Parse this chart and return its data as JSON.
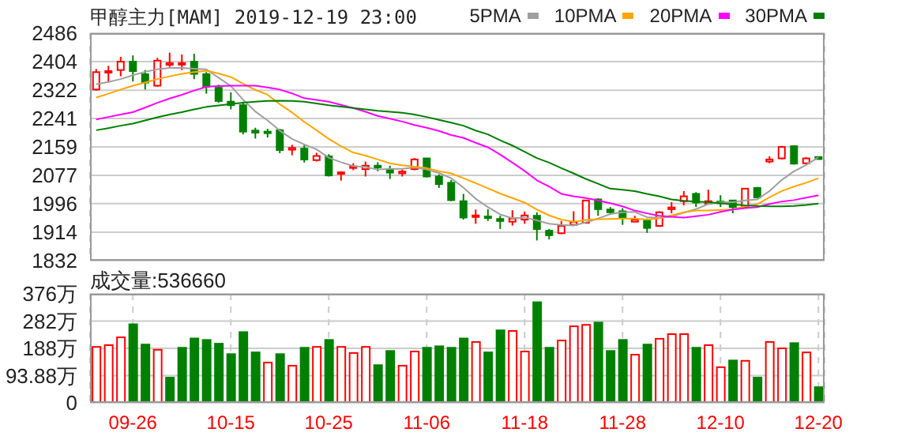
{
  "chart_data": [
    {
      "type": "candlestick",
      "title": "甲醇主力[MAM] 2019-12-19 23:00",
      "categories": [
        null,
        null,
        null,
        null,
        null,
        null,
        null,
        null,
        null,
        null,
        null,
        null,
        null,
        null,
        null,
        null,
        null,
        null,
        null,
        null,
        null,
        null,
        null,
        null,
        null,
        null,
        null,
        null,
        null,
        null,
        null,
        null,
        null,
        null,
        null,
        null,
        null,
        null,
        null,
        null,
        null,
        null,
        null,
        null,
        null,
        null,
        null,
        null,
        null,
        null,
        null,
        null,
        null,
        null,
        null,
        null,
        null,
        null,
        null,
        null
      ],
      "ohlc": [
        [
          2324,
          2383,
          2321,
          2374
        ],
        [
          2374,
          2392,
          2344,
          2377
        ],
        [
          2380,
          2418,
          2362,
          2404
        ],
        [
          2404,
          2422,
          2347,
          2377
        ],
        [
          2368,
          2380,
          2324,
          2344
        ],
        [
          2335,
          2415,
          2332,
          2407
        ],
        [
          2395,
          2430,
          2389,
          2400
        ],
        [
          2397,
          2425,
          2380,
          2400
        ],
        [
          2404,
          2427,
          2354,
          2369
        ],
        [
          2368,
          2374,
          2312,
          2332
        ],
        [
          2329,
          2338,
          2286,
          2291
        ],
        [
          2289,
          2316,
          2267,
          2279
        ],
        [
          2279,
          2289,
          2195,
          2203
        ],
        [
          2206,
          2214,
          2183,
          2200
        ],
        [
          2203,
          2211,
          2186,
          2200
        ],
        [
          2207,
          2211,
          2141,
          2150
        ],
        [
          2151,
          2165,
          2135,
          2156
        ],
        [
          2154,
          2165,
          2114,
          2123
        ],
        [
          2121,
          2142,
          2117,
          2133
        ],
        [
          2132,
          2138,
          2074,
          2077
        ],
        [
          2082,
          2089,
          2062,
          2086
        ],
        [
          2099,
          2112,
          2092,
          2103
        ],
        [
          2095,
          2117,
          2074,
          2105
        ],
        [
          2105,
          2115,
          2089,
          2100
        ],
        [
          2095,
          2105,
          2067,
          2085
        ],
        [
          2083,
          2094,
          2074,
          2088
        ],
        [
          2095,
          2127,
          2092,
          2123
        ],
        [
          2126,
          2127,
          2071,
          2074
        ],
        [
          2074,
          2080,
          2041,
          2052
        ],
        [
          2056,
          2064,
          2003,
          2006
        ],
        [
          2003,
          2024,
          1950,
          1956
        ],
        [
          1958,
          1979,
          1938,
          1962
        ],
        [
          1959,
          1980,
          1946,
          1955
        ],
        [
          1952,
          1961,
          1923,
          1946
        ],
        [
          1944,
          1977,
          1933,
          1953
        ],
        [
          1950,
          1973,
          1938,
          1962
        ],
        [
          1961,
          1971,
          1890,
          1923
        ],
        [
          1918,
          1923,
          1893,
          1905
        ],
        [
          1911,
          1946,
          1908,
          1932
        ],
        [
          1935,
          1974,
          1932,
          1943
        ],
        [
          1941,
          2006,
          1938,
          2005
        ],
        [
          2008,
          2011,
          1961,
          1980
        ],
        [
          1979,
          1986,
          1965,
          1971
        ],
        [
          1974,
          1983,
          1935,
          1956
        ],
        [
          1944,
          1961,
          1943,
          1950
        ],
        [
          1947,
          1953,
          1912,
          1926
        ],
        [
          1932,
          1974,
          1929,
          1971
        ],
        [
          1980,
          2000,
          1968,
          1985
        ],
        [
          2003,
          2032,
          1991,
          2017
        ],
        [
          2024,
          2029,
          1986,
          1999
        ],
        [
          1996,
          2036,
          1993,
          2003
        ],
        [
          2002,
          2020,
          1986,
          1997
        ],
        [
          2005,
          2006,
          1968,
          1986
        ],
        [
          1986,
          2041,
          1983,
          2039
        ],
        [
          2041,
          2044,
          2011,
          2014
        ],
        [
          2117,
          2132,
          2112,
          2123
        ],
        [
          2126,
          2162,
          2123,
          2159
        ],
        [
          2161,
          2164,
          2108,
          2111
        ],
        [
          2112,
          2129,
          2109,
          2126
        ],
        [
          2130,
          2130,
          2123,
          2124
        ]
      ],
      "series": [
        {
          "type": "line",
          "name": "5PMA",
          "color": "#a0a0a0",
          "values": [
            2339,
            2346,
            2354,
            2365,
            2375,
            2382,
            2386,
            2386,
            2384,
            2382,
            2358,
            2334,
            2295,
            2261,
            2235,
            2206,
            2182,
            2166,
            2152,
            2128,
            2115,
            2104,
            2101,
            2094,
            2096,
            2096,
            2100,
            2094,
            2084,
            2069,
            2042,
            2010,
            1986,
            1965,
            1954,
            1956,
            1948,
            1938,
            1935,
            1933,
            1942,
            1953,
            1966,
            1971,
            1972,
            1957,
            1955,
            1958,
            1970,
            1980,
            1995,
            2000,
            2000,
            2005,
            2008,
            2032,
            2064,
            2089,
            2107,
            2129
          ]
        },
        {
          "type": "line",
          "name": "10PMA",
          "color": "#ffa500",
          "values": [
            2301,
            2312,
            2324,
            2335,
            2344,
            2354,
            2362,
            2369,
            2374,
            2378,
            2370,
            2360,
            2341,
            2323,
            2309,
            2282,
            2258,
            2231,
            2207,
            2182,
            2161,
            2143,
            2134,
            2123,
            2112,
            2106,
            2102,
            2098,
            2089,
            2083,
            2069,
            2055,
            2040,
            2025,
            2012,
            1999,
            1979,
            1962,
            1950,
            1944,
            1949,
            1951,
            1952,
            1953,
            1953,
            1950,
            1954,
            1962,
            1971,
            1976,
            1976,
            1978,
            1979,
            1988,
            1994,
            2014,
            2032,
            2045,
            2056,
            2069
          ]
        },
        {
          "type": "line",
          "name": "20PMA",
          "color": "#ff00ff",
          "values": [
            2238,
            2245,
            2252,
            2259,
            2272,
            2286,
            2298,
            2309,
            2321,
            2332,
            2334,
            2335,
            2335,
            2335,
            2330,
            2324,
            2313,
            2299,
            2294,
            2289,
            2280,
            2271,
            2260,
            2248,
            2240,
            2232,
            2222,
            2214,
            2205,
            2193,
            2185,
            2171,
            2158,
            2137,
            2114,
            2090,
            2063,
            2045,
            2024,
            2017,
            2012,
            2005,
            1997,
            1988,
            1976,
            1968,
            1961,
            1958,
            1956,
            1960,
            1964,
            1972,
            1979,
            1983,
            1986,
            1995,
            2002,
            2006,
            2013,
            2020
          ]
        },
        {
          "type": "line",
          "name": "30PMA",
          "color": "#007f00",
          "values": [
            2207,
            2213,
            2220,
            2226,
            2235,
            2244,
            2252,
            2259,
            2267,
            2274,
            2278,
            2282,
            2286,
            2289,
            2291,
            2292,
            2291,
            2289,
            2284,
            2279,
            2275,
            2271,
            2267,
            2263,
            2260,
            2257,
            2252,
            2245,
            2237,
            2229,
            2220,
            2206,
            2195,
            2178,
            2163,
            2145,
            2127,
            2114,
            2098,
            2083,
            2067,
            2053,
            2039,
            2036,
            2032,
            2024,
            2017,
            2008,
            2004,
            2002,
            2000,
            1997,
            1994,
            1991,
            1989,
            1988,
            1988,
            1989,
            1992,
            1996
          ]
        }
      ],
      "ylim": [
        1832,
        2486
      ],
      "yticks": [
        1832,
        1914,
        1996,
        2077,
        2159,
        2241,
        2322,
        2404,
        2486
      ],
      "grid": true,
      "legend": "top right",
      "tick_labels": "y"
    },
    {
      "type": "bar",
      "title": "成交量:536660",
      "categories": [
        null,
        null,
        null,
        "09-26",
        null,
        null,
        null,
        null,
        null,
        null,
        null,
        "10-15",
        null,
        null,
        null,
        null,
        null,
        null,
        null,
        "10-25",
        null,
        null,
        null,
        null,
        null,
        null,
        null,
        "11-06",
        null,
        null,
        null,
        null,
        null,
        null,
        null,
        "11-18",
        null,
        null,
        null,
        null,
        null,
        null,
        null,
        "11-28",
        null,
        null,
        null,
        null,
        null,
        null,
        null,
        "12-10",
        null,
        null,
        null,
        null,
        null,
        null,
        null,
        "12-20"
      ],
      "values": [
        193,
        199,
        226,
        271,
        201,
        183,
        87,
        190,
        222,
        217,
        204,
        168,
        244,
        174,
        139,
        168,
        128,
        190,
        193,
        217,
        193,
        172,
        193,
        130,
        179,
        128,
        177,
        190,
        195,
        190,
        222,
        210,
        174,
        250,
        248,
        177,
        347,
        190,
        215,
        264,
        269,
        277,
        179,
        217,
        166,
        201,
        221,
        237,
        237,
        190,
        199,
        123,
        146,
        145,
        87,
        210,
        188,
        206,
        174,
        54
      ],
      "colors": [
        "#ff0000",
        "#ff0000",
        "#ff0000",
        "#008000",
        "#008000",
        "#ff0000",
        "#008000",
        "#008000",
        "#008000",
        "#008000",
        "#008000",
        "#008000",
        "#008000",
        "#008000",
        "#ff0000",
        "#008000",
        "#ff0000",
        "#008000",
        "#ff0000",
        "#008000",
        "#ff0000",
        "#ff0000",
        "#ff0000",
        "#008000",
        "#008000",
        "#ff0000",
        "#ff0000",
        "#008000",
        "#008000",
        "#008000",
        "#008000",
        "#ff0000",
        "#008000",
        "#008000",
        "#ff0000",
        "#ff0000",
        "#008000",
        "#008000",
        "#ff0000",
        "#ff0000",
        "#ff0000",
        "#008000",
        "#008000",
        "#008000",
        "#ff0000",
        "#008000",
        "#ff0000",
        "#ff0000",
        "#ff0000",
        "#008000",
        "#ff0000",
        "#ff0000",
        "#008000",
        "#ff0000",
        "#008000",
        "#ff0000",
        "#ff0000",
        "#008000",
        "#ff0000",
        "#008000"
      ],
      "ylim": [
        0,
        376
      ],
      "yticks": [
        0,
        {
          "value": 93.88,
          "label": "93.88万"
        },
        {
          "value": 188,
          "label": "188万"
        },
        {
          "value": 282,
          "label": "282万"
        },
        {
          "value": 376,
          "label": "376万"
        }
      ],
      "grid": true
    }
  ]
}
